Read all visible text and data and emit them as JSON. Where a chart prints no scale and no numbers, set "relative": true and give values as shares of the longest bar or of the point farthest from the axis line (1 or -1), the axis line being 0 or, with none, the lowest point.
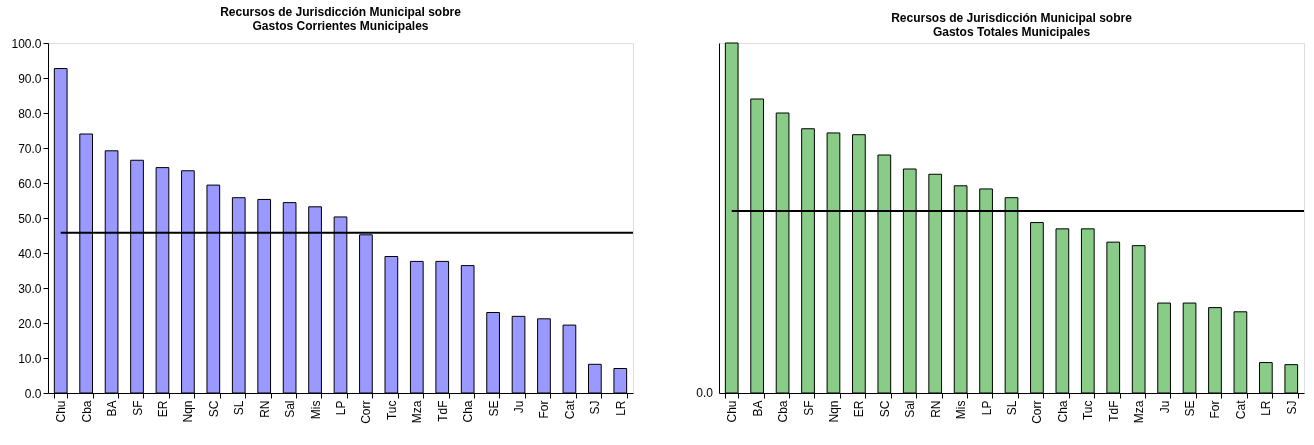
{
  "chart_data": [
    {
      "type": "bar",
      "title": "Recursos de Jurisdicción Municipal sobre\nGastos Corrientes Municipales",
      "categories": [
        "Chu",
        "Cba",
        "BA",
        "SF",
        "ER",
        "Nqn",
        "SC",
        "SL",
        "RN",
        "Sal",
        "Mis",
        "LP",
        "Corr",
        "Tuc",
        "Mza",
        "TdF",
        "Cha",
        "SE",
        "Ju",
        "For",
        "Cat",
        "SJ",
        "LR"
      ],
      "values": [
        92.7,
        74.0,
        69.2,
        66.5,
        64.4,
        63.5,
        59.4,
        55.8,
        55.3,
        54.4,
        53.2,
        50.3,
        45.2,
        39.0,
        37.6,
        37.6,
        36.4,
        23.0,
        21.9,
        21.2,
        19.4,
        8.2,
        7.0
      ],
      "color": "#9999ff",
      "ylim": [
        0,
        100
      ],
      "yticks": [
        {
          "value": 0,
          "label": "0.0"
        },
        {
          "value": 10,
          "label": "10.0"
        },
        {
          "value": 20,
          "label": "20.0"
        },
        {
          "value": 30,
          "label": "30.0"
        },
        {
          "value": 40,
          "label": "40.0"
        },
        {
          "value": 50,
          "label": "50.0"
        },
        {
          "value": 60,
          "label": "60.0"
        },
        {
          "value": 70,
          "label": "70.0"
        },
        {
          "value": 80,
          "label": "80.0"
        },
        {
          "value": 90,
          "label": "90.0"
        },
        {
          "value": 100,
          "label": "100.0"
        }
      ],
      "ref_lines": [
        {
          "axis": "y",
          "value": 45.8,
          "color": "#000000"
        }
      ],
      "grid": false
    },
    {
      "type": "bar",
      "title": "Recursos de Jurisdicción Municipal sobre\nGastos Totales Municipales",
      "categories": [
        "Chu",
        "BA",
        "Cba",
        "SF",
        "Nqn",
        "ER",
        "SC",
        "Sal",
        "RN",
        "Mis",
        "LP",
        "SL",
        "Corr",
        "Cha",
        "Tuc",
        "TdF",
        "Mza",
        "Ju",
        "SE",
        "For",
        "Cat",
        "LR",
        "SJ"
      ],
      "values": [
        1,
        0.84,
        0.8,
        0.755,
        0.743,
        0.738,
        0.68,
        0.64,
        0.625,
        0.592,
        0.583,
        0.558,
        0.487,
        0.469,
        0.469,
        0.431,
        0.421,
        0.257,
        0.257,
        0.244,
        0.232,
        0.087,
        0.081
      ],
      "color": "#88cc88",
      "relative": true,
      "annotations": [
        "0.0"
      ],
      "ref_lines": [
        {
          "axis": "y",
          "value": 0.52,
          "color": "#000000"
        }
      ],
      "grid": false
    }
  ]
}
